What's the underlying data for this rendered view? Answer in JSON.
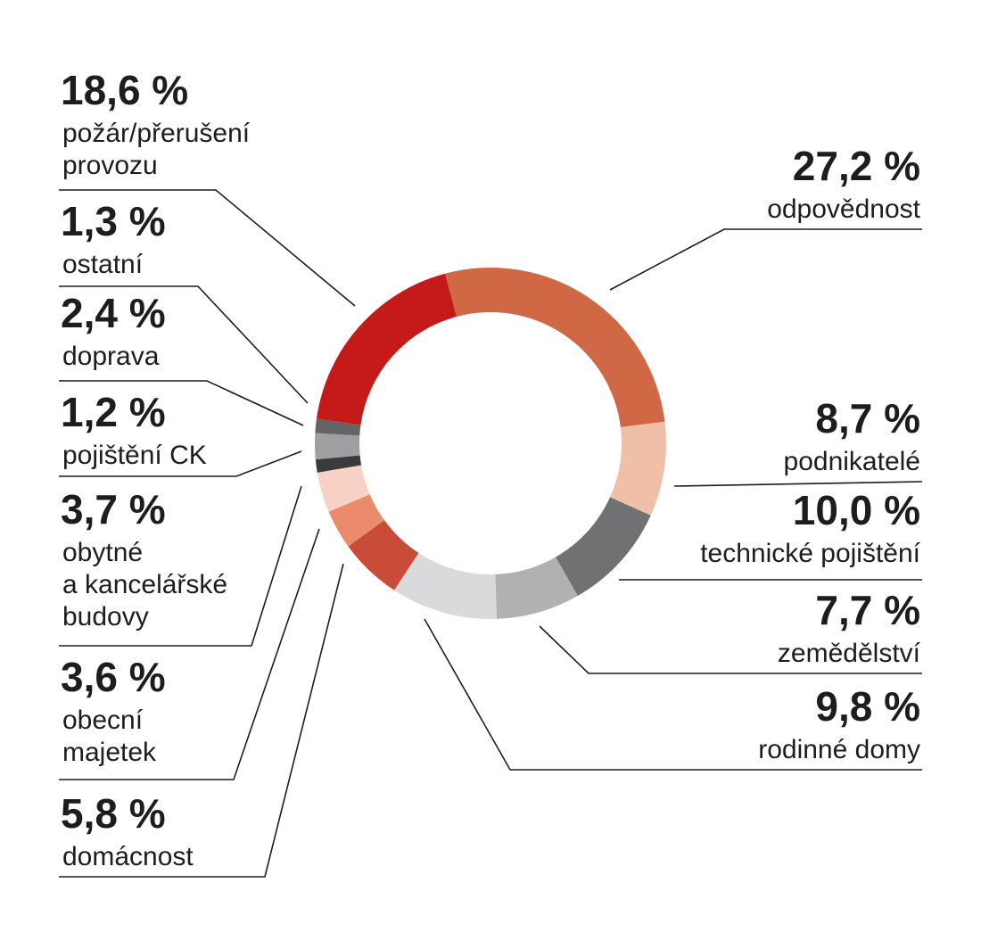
{
  "chart_data": {
    "type": "pie",
    "slices": [
      {
        "value": 27.2,
        "value_label": "27,2 %",
        "label_lines": [
          "odpovědnost"
        ],
        "color": "#d06846"
      },
      {
        "value": 8.7,
        "value_label": "8,7 %",
        "label_lines": [
          "podnikatelé"
        ],
        "color": "#efbfa8"
      },
      {
        "value": 10.0,
        "value_label": "10,0 %",
        "label_lines": [
          "technické pojištění"
        ],
        "color": "#707173"
      },
      {
        "value": 7.7,
        "value_label": "7,7 %",
        "label_lines": [
          "zemědělství"
        ],
        "color": "#b0b1b3"
      },
      {
        "value": 9.8,
        "value_label": "9,8 %",
        "label_lines": [
          "rodinné domy"
        ],
        "color": "#dadadc"
      },
      {
        "value": 5.8,
        "value_label": "5,8 %",
        "label_lines": [
          "domácnost"
        ],
        "color": "#c84c38"
      },
      {
        "value": 3.6,
        "value_label": "3,6 %",
        "label_lines": [
          "obecní",
          "majetek"
        ],
        "color": "#ec8a6c"
      },
      {
        "value": 3.7,
        "value_label": "3,7 %",
        "label_lines": [
          "obytné",
          "a kancelářské",
          "budovy"
        ],
        "color": "#f7d2c4"
      },
      {
        "value": 1.2,
        "value_label": "1,2 %",
        "label_lines": [
          "pojištění CK"
        ],
        "color": "#3a3b3d"
      },
      {
        "value": 2.4,
        "value_label": "2,4 %",
        "label_lines": [
          "doprava"
        ],
        "color": "#9e9fa1"
      },
      {
        "value": 1.3,
        "value_label": "1,3 %",
        "label_lines": [
          "ostatní"
        ],
        "color": "#636466"
      },
      {
        "value": 18.6,
        "value_label": "18,6 %",
        "label_lines": [
          "požár/přerušení",
          "provozu"
        ],
        "color": "#c41a1a"
      }
    ]
  }
}
